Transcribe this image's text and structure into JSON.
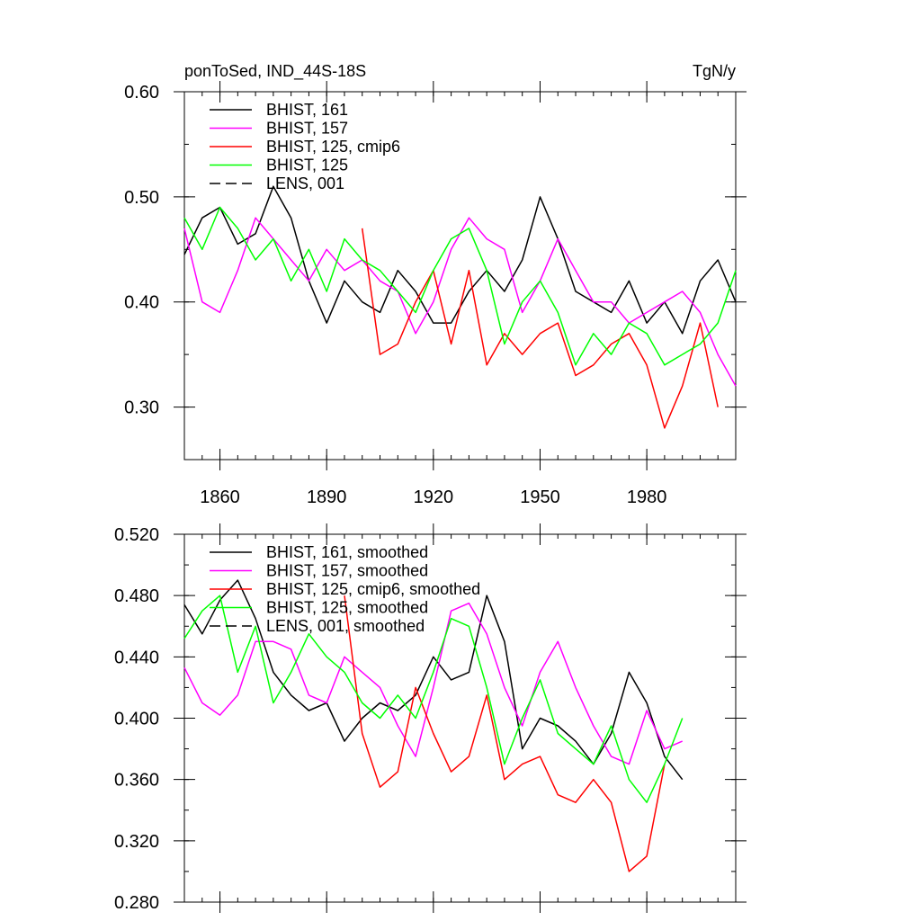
{
  "colors": {
    "bhist_161": "#000000",
    "bhist_157": "#ff00ff",
    "bhist_125_cmip6": "#ff0000",
    "bhist_125": "#00ff00",
    "lens_001": "#000000"
  },
  "chart_data": [
    {
      "type": "line",
      "title": "ponToSed, IND_44S-18S",
      "units": "TgN/y",
      "xlim": [
        1850,
        2005
      ],
      "ylim": [
        0.25,
        0.6
      ],
      "xticks": [
        "1860",
        "1890",
        "1920",
        "1950",
        "1980"
      ],
      "yticks": [
        "0.60",
        "0.50",
        "0.40",
        "0.30"
      ],
      "ytick_values": [
        0.6,
        0.5,
        0.4,
        0.3
      ],
      "legend_position": "top-left",
      "legend": [
        "BHIST, 161",
        "BHIST, 157",
        "BHIST, 125, cmip6",
        "BHIST, 125",
        "LENS, 001"
      ],
      "series": [
        {
          "name": "BHIST, 161",
          "color": "#000000",
          "x_start": 1850,
          "x_step": 5,
          "values": [
            0.445,
            0.48,
            0.49,
            0.455,
            0.465,
            0.51,
            0.48,
            0.42,
            0.38,
            0.42,
            0.4,
            0.39,
            0.43,
            0.41,
            0.38,
            0.38,
            0.41,
            0.43,
            0.41,
            0.44,
            0.5,
            0.46,
            0.41,
            0.4,
            0.39,
            0.42,
            0.38,
            0.4,
            0.37,
            0.42,
            0.44,
            0.4
          ]
        },
        {
          "name": "BHIST, 157",
          "color": "#ff00ff",
          "x_start": 1850,
          "x_step": 5,
          "values": [
            0.47,
            0.4,
            0.39,
            0.43,
            0.48,
            0.46,
            0.44,
            0.42,
            0.45,
            0.43,
            0.44,
            0.42,
            0.41,
            0.37,
            0.4,
            0.45,
            0.48,
            0.46,
            0.45,
            0.39,
            0.42,
            0.46,
            0.43,
            0.4,
            0.4,
            0.38,
            0.39,
            0.4,
            0.41,
            0.39,
            0.35,
            0.32
          ]
        },
        {
          "name": "BHIST, 125, cmip6",
          "color": "#ff0000",
          "x_start": 1850,
          "x_step": 5,
          "values": [
            null,
            null,
            null,
            null,
            null,
            null,
            null,
            null,
            null,
            null,
            0.47,
            0.35,
            0.36,
            0.4,
            0.43,
            0.36,
            0.43,
            0.34,
            0.37,
            0.35,
            0.37,
            0.38,
            0.33,
            0.34,
            0.36,
            0.37,
            0.34,
            0.28,
            0.32,
            0.38,
            0.3,
            null
          ]
        },
        {
          "name": "BHIST, 125",
          "color": "#00ff00",
          "x_start": 1850,
          "x_step": 5,
          "values": [
            0.48,
            0.45,
            0.49,
            0.47,
            0.44,
            0.46,
            0.42,
            0.45,
            0.41,
            0.46,
            0.44,
            0.43,
            0.41,
            0.39,
            0.43,
            0.46,
            0.47,
            0.43,
            0.36,
            0.4,
            0.42,
            0.39,
            0.34,
            0.37,
            0.35,
            0.38,
            0.37,
            0.34,
            0.35,
            0.36,
            0.38,
            0.43
          ]
        },
        {
          "name": "LENS, 001",
          "color": "#000000",
          "dash": true,
          "values": []
        }
      ]
    },
    {
      "type": "line",
      "ylim": [
        0.28,
        0.52
      ],
      "xlim": [
        1850,
        2005
      ],
      "yticks": [
        "0.520",
        "0.480",
        "0.440",
        "0.400",
        "0.360",
        "0.320",
        "0.280"
      ],
      "ytick_values": [
        0.52,
        0.48,
        0.44,
        0.4,
        0.36,
        0.32,
        0.28
      ],
      "legend_position": "top-left",
      "legend": [
        "BHIST, 161, smoothed",
        "BHIST, 157, smoothed",
        "BHIST, 125, cmip6, smoothed",
        "BHIST, 125, smoothed",
        "LENS, 001, smoothed"
      ],
      "series": [
        {
          "name": "BHIST, 161, smoothed",
          "color": "#000000",
          "x_start": 1850,
          "x_step": 5,
          "values": [
            0.474,
            0.455,
            0.477,
            0.49,
            0.465,
            0.43,
            0.415,
            0.405,
            0.41,
            0.385,
            0.4,
            0.41,
            0.405,
            0.415,
            0.44,
            0.425,
            0.43,
            0.48,
            0.45,
            0.38,
            0.4,
            0.395,
            0.385,
            0.37,
            0.39,
            0.43,
            0.41,
            0.375,
            0.36
          ]
        },
        {
          "name": "BHIST, 157, smoothed",
          "color": "#ff00ff",
          "x_start": 1850,
          "x_step": 5,
          "values": [
            0.433,
            0.41,
            0.402,
            0.415,
            0.45,
            0.45,
            0.445,
            0.415,
            0.41,
            0.44,
            0.43,
            0.42,
            0.395,
            0.375,
            0.42,
            0.47,
            0.475,
            0.455,
            0.42,
            0.395,
            0.43,
            0.45,
            0.42,
            0.395,
            0.375,
            0.37,
            0.405,
            0.38,
            0.385
          ]
        },
        {
          "name": "BHIST, 125, cmip6, smoothed",
          "color": "#ff0000",
          "x_start": 1850,
          "x_step": 5,
          "values": [
            null,
            null,
            null,
            null,
            null,
            null,
            null,
            null,
            null,
            0.48,
            0.39,
            0.355,
            0.365,
            0.42,
            0.39,
            0.365,
            0.375,
            0.415,
            0.36,
            0.37,
            0.375,
            0.35,
            0.345,
            0.36,
            0.345,
            0.3,
            0.31,
            0.37,
            null
          ]
        },
        {
          "name": "BHIST, 125, smoothed",
          "color": "#00ff00",
          "x_start": 1850,
          "x_step": 5,
          "values": [
            0.452,
            0.47,
            0.48,
            0.43,
            0.46,
            0.41,
            0.43,
            0.455,
            0.44,
            0.43,
            0.41,
            0.4,
            0.415,
            0.4,
            0.43,
            0.465,
            0.46,
            0.42,
            0.37,
            0.4,
            0.425,
            0.39,
            0.38,
            0.37,
            0.395,
            0.36,
            0.345,
            0.37,
            0.4
          ]
        },
        {
          "name": "LENS, 001, smoothed",
          "color": "#000000",
          "dash": true,
          "values": []
        }
      ]
    }
  ]
}
